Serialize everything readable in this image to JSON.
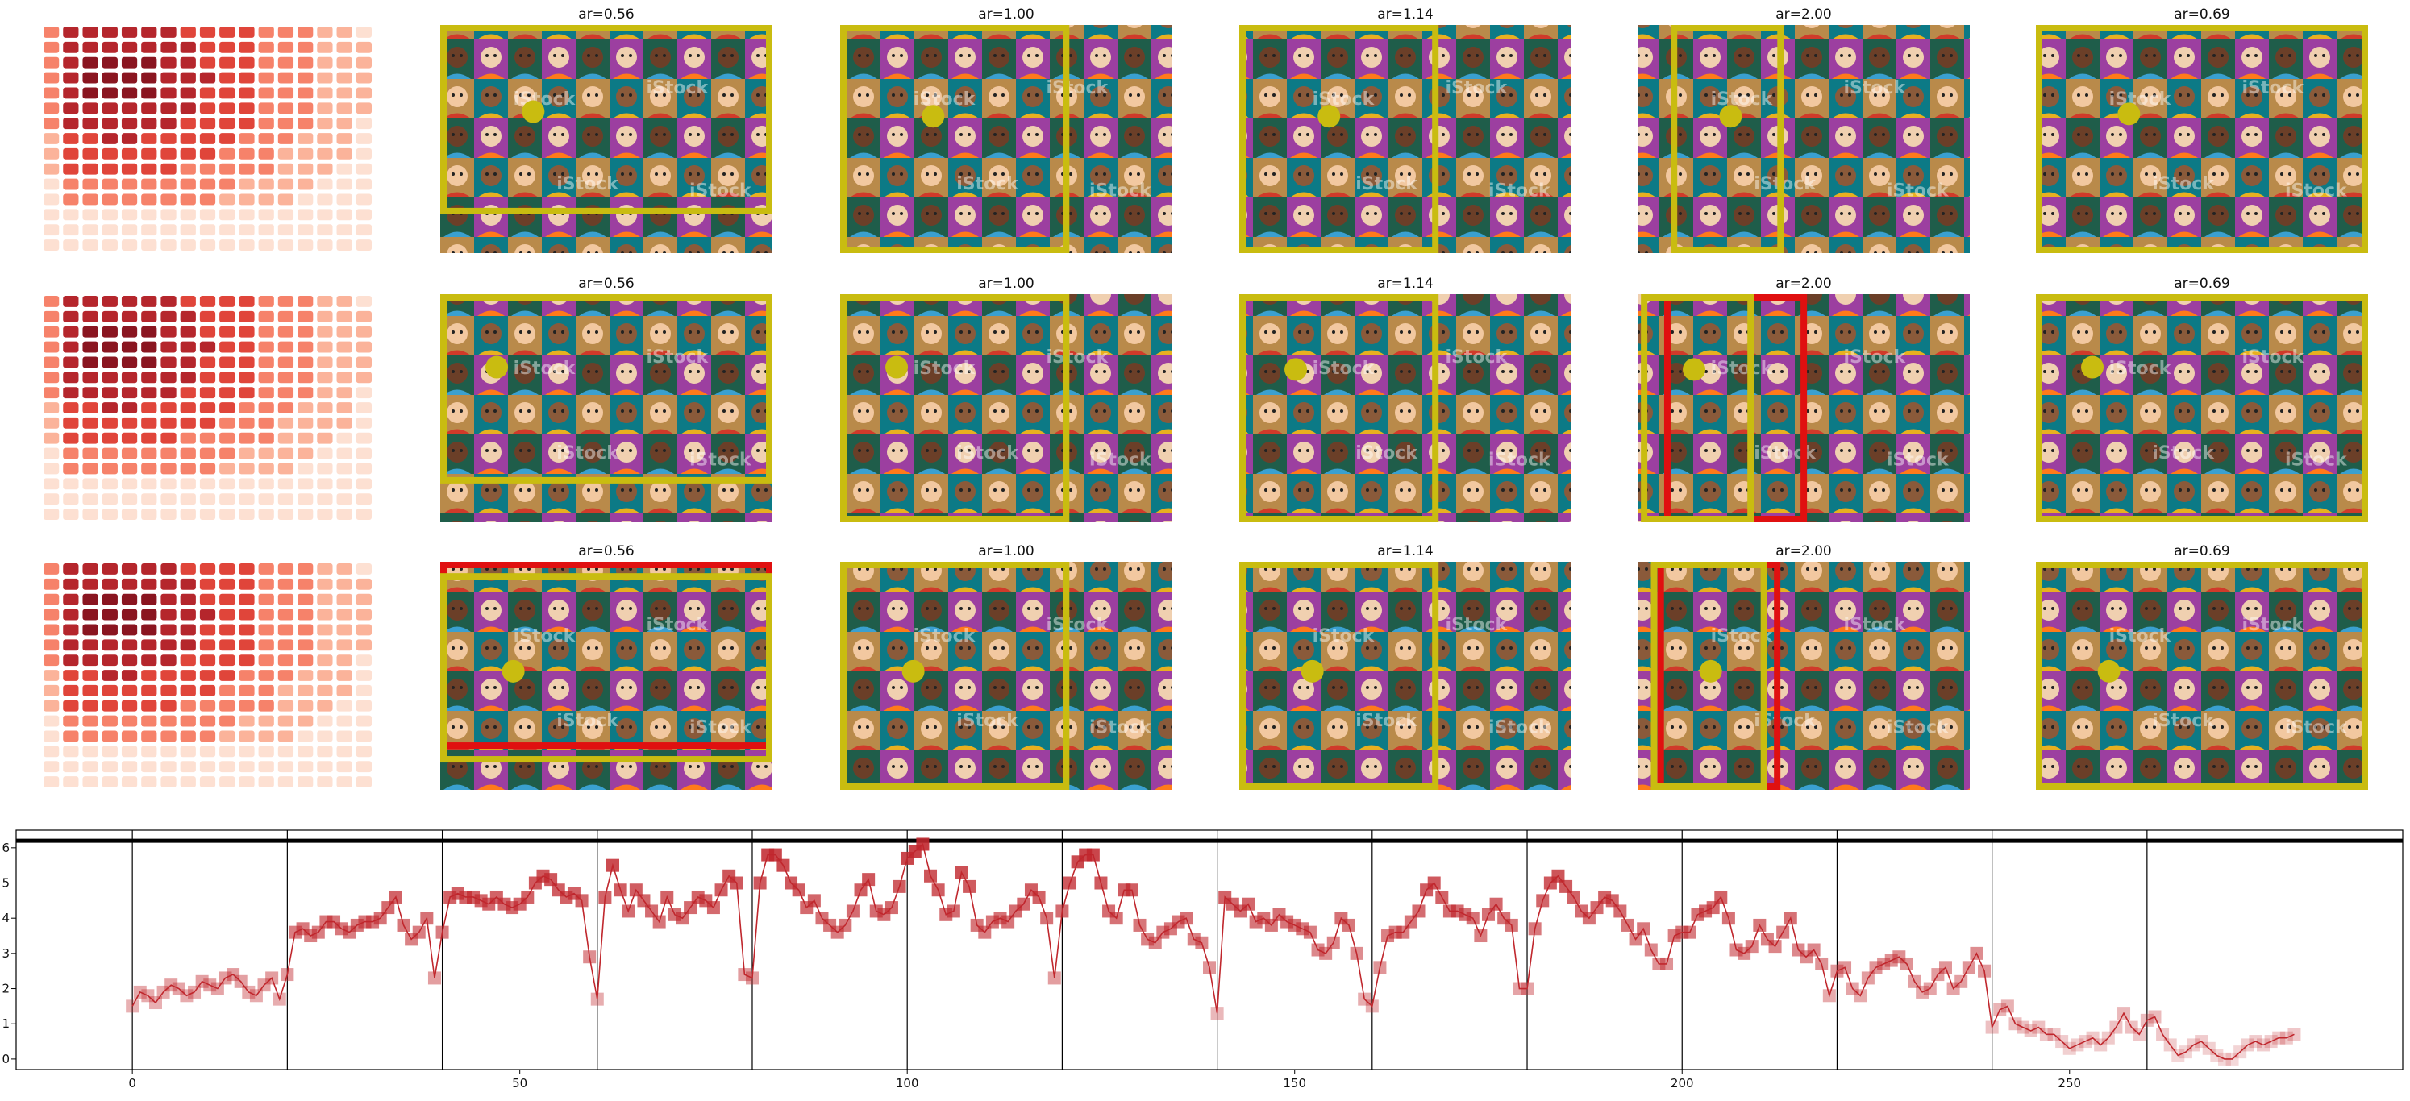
{
  "grid": {
    "rows": [
      {
        "panels": [
          {
            "title": ""
          },
          {
            "title": "ar=0.56"
          },
          {
            "title": "ar=1.00"
          },
          {
            "title": "ar=1.14"
          },
          {
            "title": "ar=2.00"
          },
          {
            "title": "ar=0.69"
          }
        ]
      },
      {
        "panels": [
          {
            "title": ""
          },
          {
            "title": "ar=0.56"
          },
          {
            "title": "ar=1.00"
          },
          {
            "title": "ar=1.14"
          },
          {
            "title": "ar=2.00"
          },
          {
            "title": "ar=0.69"
          }
        ]
      },
      {
        "panels": [
          {
            "title": ""
          },
          {
            "title": "ar=0.56"
          },
          {
            "title": "ar=1.00"
          },
          {
            "title": "ar=1.14"
          },
          {
            "title": "ar=2.00"
          },
          {
            "title": "ar=0.69"
          }
        ]
      }
    ],
    "watermark_text": "iStock",
    "heatmap_colors": [
      "#fde0d2",
      "#fbb39a",
      "#f6826a",
      "#e0453a",
      "#b5262c",
      "#8a1520"
    ],
    "box_colors": {
      "yellow": "#c9bc10",
      "red": "#e01010"
    }
  },
  "chart_data": {
    "type": "line",
    "title": "",
    "xlabel": "",
    "ylabel": "",
    "xlim": [
      -15,
      293
    ],
    "ylim": [
      -0.3,
      6.5
    ],
    "xticks": [
      0,
      50,
      100,
      150,
      200,
      250
    ],
    "yticks": [
      0,
      1,
      2,
      3,
      4,
      5,
      6
    ],
    "hline": 6.2,
    "vlines": [
      0,
      20,
      40,
      60,
      80,
      100,
      120,
      140,
      160,
      180,
      200,
      220,
      240,
      260
    ],
    "line_color": "#c0272d",
    "marker": "square",
    "series": [
      {
        "values": [
          1.5,
          1.9,
          1.8,
          1.6,
          1.9,
          2.1,
          2.0,
          1.8,
          1.9,
          2.2,
          2.1,
          2.0,
          2.3,
          2.4,
          2.2,
          1.9,
          1.8,
          2.1,
          2.3,
          1.7,
          2.4,
          3.6,
          3.7,
          3.5,
          3.6,
          3.9,
          3.9,
          3.7,
          3.6,
          3.8,
          3.9,
          3.9,
          4.0,
          4.3,
          4.6,
          3.8,
          3.4,
          3.6,
          4.0,
          2.3,
          3.6,
          4.6,
          4.7,
          4.6,
          4.6,
          4.5,
          4.4,
          4.6,
          4.4,
          4.3,
          4.4,
          4.6,
          5.0,
          5.2,
          5.1,
          4.8,
          4.6,
          4.7,
          4.5,
          2.9,
          1.7,
          4.6,
          5.5,
          4.8,
          4.2,
          4.8,
          4.5,
          4.2,
          3.9,
          4.6,
          4.1,
          4.0,
          4.3,
          4.6,
          4.5,
          4.3,
          4.8,
          5.2,
          5.0,
          2.4,
          2.3,
          5.0,
          5.8,
          5.8,
          5.5,
          5.0,
          4.8,
          4.3,
          4.5,
          4.0,
          3.8,
          3.6,
          3.8,
          4.2,
          4.8,
          5.1,
          4.2,
          4.1,
          4.3,
          4.9,
          5.7,
          5.9,
          6.1,
          5.2,
          4.8,
          4.1,
          4.2,
          5.3,
          4.9,
          3.8,
          3.6,
          3.9,
          4.0,
          3.9,
          4.2,
          4.4,
          4.8,
          4.6,
          4.0,
          2.3,
          4.2,
          5.0,
          5.6,
          5.8,
          5.8,
          5.0,
          4.2,
          4.0,
          4.8,
          4.8,
          3.8,
          3.4,
          3.3,
          3.6,
          3.7,
          3.9,
          4.0,
          3.4,
          3.3,
          2.6,
          1.3,
          4.6,
          4.4,
          4.2,
          4.4,
          3.9,
          4.0,
          3.8,
          4.1,
          3.9,
          3.8,
          3.7,
          3.6,
          3.1,
          3.0,
          3.3,
          4.0,
          3.8,
          3.0,
          1.7,
          1.5,
          2.6,
          3.5,
          3.6,
          3.6,
          3.9,
          4.2,
          4.8,
          5.0,
          4.6,
          4.2,
          4.2,
          4.1,
          4.0,
          3.5,
          4.1,
          4.4,
          4.0,
          3.8,
          2.0,
          2.0,
          3.7,
          4.5,
          5.0,
          5.2,
          4.9,
          4.6,
          4.2,
          4.0,
          4.3,
          4.6,
          4.5,
          4.2,
          3.8,
          3.4,
          3.7,
          3.1,
          2.7,
          2.7,
          3.5,
          3.6,
          3.6,
          4.1,
          4.2,
          4.3,
          4.6,
          4.0,
          3.1,
          3.0,
          3.2,
          3.8,
          3.4,
          3.2,
          3.6,
          4.0,
          3.1,
          2.9,
          3.1,
          2.7,
          1.8,
          2.5,
          2.6,
          2.0,
          1.8,
          2.3,
          2.6,
          2.7,
          2.8,
          2.9,
          2.7,
          2.2,
          1.9,
          2.0,
          2.4,
          2.6,
          2.0,
          2.2,
          2.6,
          3.0,
          2.5,
          0.9,
          1.4,
          1.5,
          1.0,
          0.9,
          0.8,
          0.9,
          0.7,
          0.7,
          0.5,
          0.3,
          0.4,
          0.5,
          0.6,
          0.4,
          0.6,
          0.9,
          1.3,
          0.9,
          0.7,
          1.1,
          1.2,
          0.7,
          0.4,
          0.1,
          0.2,
          0.4,
          0.5,
          0.3,
          0.1,
          0.0,
          0.0,
          0.2,
          0.4,
          0.5,
          0.4,
          0.5,
          0.6,
          0.6,
          0.7
        ]
      }
    ]
  }
}
